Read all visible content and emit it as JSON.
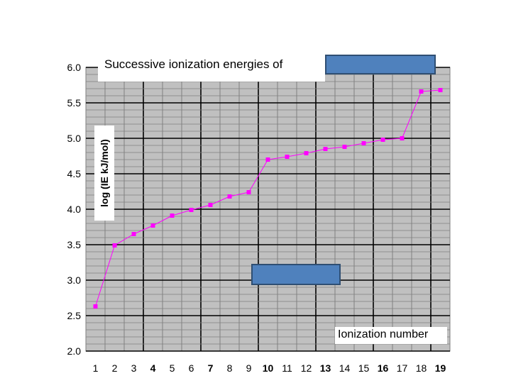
{
  "chart_data": {
    "type": "line",
    "title": "Successive ionization energies of",
    "xlabel": "Ionization number",
    "ylabel": "log (IE kJ/mol)",
    "x": [
      1,
      2,
      3,
      4,
      5,
      6,
      7,
      8,
      9,
      10,
      11,
      12,
      13,
      14,
      15,
      16,
      17,
      18,
      19
    ],
    "series": [
      {
        "values": [
          2.63,
          3.49,
          3.65,
          3.77,
          3.91,
          3.99,
          4.06,
          4.18,
          4.24,
          4.7,
          4.74,
          4.79,
          4.85,
          4.88,
          4.93,
          4.98,
          5.0,
          5.66,
          5.68
        ]
      }
    ],
    "ylim": [
      2.0,
      6.0
    ],
    "yticks": [
      "2.0",
      "2.5",
      "3.0",
      "3.5",
      "4.0",
      "4.5",
      "5.0",
      "5.5",
      "6.0"
    ],
    "xticks": [
      "1",
      "2",
      "3",
      "4",
      "5",
      "6",
      "7",
      "8",
      "9",
      "10",
      "11",
      "12",
      "13",
      "14",
      "15",
      "16",
      "17",
      "18",
      "19"
    ],
    "grid": true,
    "colors": {
      "series": "#ff00ff",
      "plot_bg": "#c0c0c0",
      "redaction": "#4f81bd"
    }
  }
}
